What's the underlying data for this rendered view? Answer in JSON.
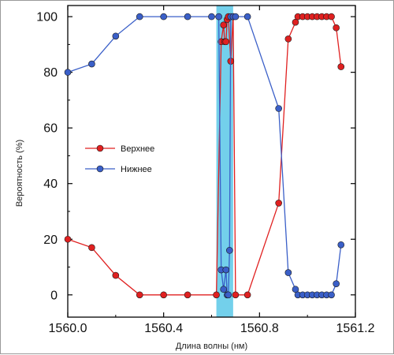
{
  "chart_data": {
    "type": "line",
    "xlabel": "Длина волны (нм)",
    "ylabel": "Вероятность (%)",
    "xlim": [
      1560.0,
      1561.2
    ],
    "ylim": [
      -8,
      104
    ],
    "x_ticks": [
      "1560.0",
      "1560.4",
      "1560.8",
      "1561.2"
    ],
    "x_tick_values": [
      1560.0,
      1560.4,
      1560.8,
      1561.2
    ],
    "y_ticks": [
      "0",
      "20",
      "40",
      "60",
      "80",
      "100"
    ],
    "y_tick_values": [
      0,
      20,
      40,
      60,
      80,
      100
    ],
    "highlight_band": {
      "x_start": 1560.62,
      "x_end": 1560.69,
      "color": "#5bc8e8"
    },
    "legend_position": "left-middle",
    "series": [
      {
        "name": "Верхнее",
        "color": "#e02020",
        "x": [
          1560.0,
          1560.1,
          1560.2,
          1560.3,
          1560.4,
          1560.5,
          1560.62,
          1560.64,
          1560.65,
          1560.655,
          1560.66,
          1560.665,
          1560.67,
          1560.68,
          1560.69,
          1560.7,
          1560.75,
          1560.88,
          1560.92,
          1560.95,
          1560.96,
          1560.98,
          1561.0,
          1561.02,
          1561.04,
          1561.06,
          1561.08,
          1561.1,
          1561.12,
          1561.14
        ],
        "y": [
          20,
          17,
          7,
          0,
          0,
          0,
          0,
          91,
          97,
          91,
          91,
          99,
          100,
          84,
          100,
          0,
          0,
          33,
          92,
          98,
          100,
          100,
          100,
          100,
          100,
          100,
          100,
          100,
          96,
          82
        ]
      },
      {
        "name": "Нижнее",
        "color": "#3a5fc8",
        "x": [
          1560.0,
          1560.1,
          1560.2,
          1560.3,
          1560.4,
          1560.5,
          1560.6,
          1560.63,
          1560.64,
          1560.65,
          1560.66,
          1560.665,
          1560.67,
          1560.675,
          1560.68,
          1560.69,
          1560.7,
          1560.75,
          1560.88,
          1560.92,
          1560.95,
          1560.96,
          1560.98,
          1561.0,
          1561.02,
          1561.04,
          1561.06,
          1561.08,
          1561.1,
          1561.12,
          1561.14
        ],
        "y": [
          80,
          83,
          93,
          100,
          100,
          100,
          100,
          100,
          9,
          2,
          9,
          0,
          0,
          16,
          100,
          100,
          100,
          100,
          67,
          8,
          2,
          0,
          0,
          0,
          0,
          0,
          0,
          0,
          0,
          4,
          18
        ]
      }
    ]
  }
}
